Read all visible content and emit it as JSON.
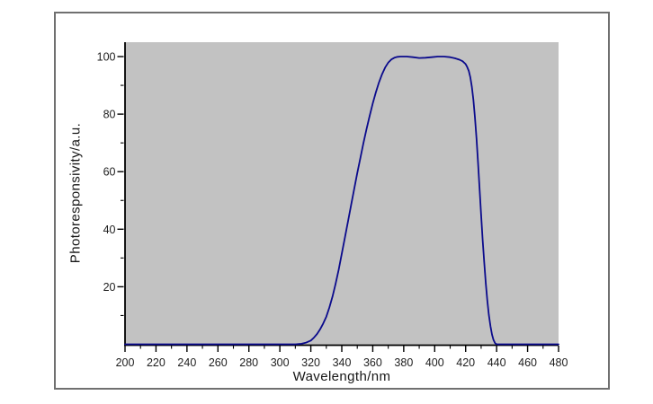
{
  "window": {
    "background": "#ffffff"
  },
  "frame": {
    "border_color": "#707070",
    "fill": "#ffffff"
  },
  "chart_data": {
    "type": "line",
    "title": "",
    "xlabel": "Wavelength/nm",
    "ylabel": "Photoresponsivity/a.u.",
    "xlim": [
      200,
      480
    ],
    "ylim": [
      0,
      105
    ],
    "x_major_ticks": [
      200,
      220,
      240,
      260,
      280,
      300,
      320,
      340,
      360,
      380,
      400,
      420,
      440,
      460,
      480
    ],
    "x_tick_labels": [
      "200",
      "220",
      "240",
      "260",
      "280",
      "300",
      "320",
      "340",
      "360",
      "380",
      "400",
      "420",
      "440",
      "460",
      "480"
    ],
    "x_minor_ticks": [
      210,
      230,
      250,
      270,
      290,
      310,
      330,
      350,
      370,
      390,
      410,
      430,
      450,
      470
    ],
    "y_major_ticks": [
      20,
      40,
      60,
      80,
      100
    ],
    "y_tick_labels": [
      "20",
      "40",
      "60",
      "80",
      "100"
    ],
    "y_minor_ticks": [
      10,
      30,
      50,
      70,
      90
    ],
    "grid": "off",
    "legend": "none",
    "panel_background": "#c2c2c2",
    "axis_color": "#000000",
    "tick_label_color": "#1e1e1e",
    "series": [
      {
        "name": "photoresponsivity",
        "color": "#0a0a8c",
        "points": [
          [
            200,
            0
          ],
          [
            220,
            0
          ],
          [
            240,
            0
          ],
          [
            260,
            0
          ],
          [
            280,
            0
          ],
          [
            300,
            0
          ],
          [
            310,
            0
          ],
          [
            314,
            0.2
          ],
          [
            317,
            0.6
          ],
          [
            320,
            1.3
          ],
          [
            322,
            2.3
          ],
          [
            324,
            3.6
          ],
          [
            326,
            5.2
          ],
          [
            328,
            7.2
          ],
          [
            330,
            9.6
          ],
          [
            332,
            12.8
          ],
          [
            334,
            16.6
          ],
          [
            336,
            21
          ],
          [
            338,
            26
          ],
          [
            340,
            31.5
          ],
          [
            342,
            37
          ],
          [
            344,
            42.7
          ],
          [
            346,
            48.3
          ],
          [
            348,
            54
          ],
          [
            350,
            59.5
          ],
          [
            352,
            64.8
          ],
          [
            354,
            70
          ],
          [
            356,
            74.8
          ],
          [
            358,
            79.4
          ],
          [
            360,
            83.7
          ],
          [
            362,
            87.6
          ],
          [
            364,
            91
          ],
          [
            366,
            93.9
          ],
          [
            368,
            96.2
          ],
          [
            370,
            97.9
          ],
          [
            372,
            99
          ],
          [
            374,
            99.6
          ],
          [
            376,
            99.9
          ],
          [
            378,
            100
          ],
          [
            382,
            100
          ],
          [
            386,
            99.8
          ],
          [
            390,
            99.5
          ],
          [
            394,
            99.6
          ],
          [
            398,
            99.8
          ],
          [
            402,
            100
          ],
          [
            406,
            100
          ],
          [
            410,
            99.8
          ],
          [
            413,
            99.4
          ],
          [
            416,
            98.9
          ],
          [
            418,
            98.4
          ],
          [
            420,
            97.4
          ],
          [
            421,
            96.4
          ],
          [
            422,
            95
          ],
          [
            423,
            92.8
          ],
          [
            424,
            89.5
          ],
          [
            425,
            85
          ],
          [
            426,
            79
          ],
          [
            427,
            71.5
          ],
          [
            428,
            63
          ],
          [
            429,
            54
          ],
          [
            430,
            45
          ],
          [
            431,
            36.3
          ],
          [
            432,
            28.3
          ],
          [
            433,
            21.2
          ],
          [
            434,
            15.2
          ],
          [
            435,
            10.2
          ],
          [
            436,
            6.3
          ],
          [
            437,
            3.4
          ],
          [
            438,
            1.5
          ],
          [
            439,
            0.4
          ],
          [
            440,
            0
          ],
          [
            445,
            0
          ],
          [
            450,
            0
          ],
          [
            460,
            0
          ],
          [
            470,
            0
          ],
          [
            480,
            0
          ]
        ]
      }
    ]
  }
}
